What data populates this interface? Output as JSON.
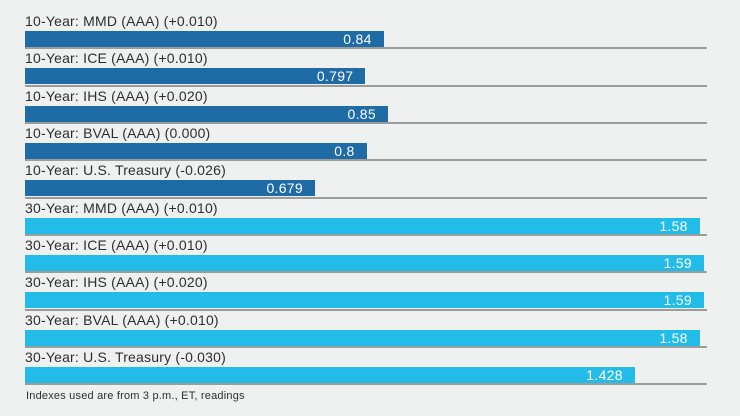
{
  "chart_data": {
    "type": "bar",
    "orientation": "horizontal",
    "title": "",
    "xlabel": "",
    "ylabel": "",
    "xlim": [
      0,
      1.597
    ],
    "grid": false,
    "legend_position": "none",
    "bar_colors": {
      "10-Year": "#1e6ba6",
      "30-Year": "#23bce8"
    },
    "categories": [
      "10-Year: MMD (AAA) (+0.010)",
      "10-Year: ICE (AAA) (+0.010)",
      "10-Year: IHS (AAA) (+0.020)",
      "10-Year: BVAL (AAA) (0.000)",
      "10-Year: U.S. Treasury (-0.026)",
      "30-Year: MMD (AAA) (+0.010)",
      "30-Year: ICE (AAA) (+0.010)",
      "30-Year: IHS (AAA) (+0.020)",
      "30-Year: BVAL (AAA) (+0.010)",
      "30-Year: U.S. Treasury (-0.030)"
    ],
    "values": [
      0.84,
      0.797,
      0.85,
      0.8,
      0.679,
      1.58,
      1.59,
      1.59,
      1.58,
      1.428
    ],
    "rows": [
      {
        "group": "10-Year",
        "label": "10-Year: MMD (AAA) (+0.010)",
        "value": 0.84,
        "display": "0.84"
      },
      {
        "group": "10-Year",
        "label": "10-Year: ICE (AAA) (+0.010)",
        "value": 0.797,
        "display": "0.797"
      },
      {
        "group": "10-Year",
        "label": "10-Year: IHS (AAA) (+0.020)",
        "value": 0.85,
        "display": "0.85"
      },
      {
        "group": "10-Year",
        "label": "10-Year: BVAL (AAA) (0.000)",
        "value": 0.8,
        "display": "0.8"
      },
      {
        "group": "10-Year",
        "label": "10-Year: U.S. Treasury (-0.026)",
        "value": 0.679,
        "display": "0.679"
      },
      {
        "group": "30-Year",
        "label": "30-Year: MMD (AAA) (+0.010)",
        "value": 1.58,
        "display": "1.58"
      },
      {
        "group": "30-Year",
        "label": "30-Year: ICE (AAA) (+0.010)",
        "value": 1.59,
        "display": "1.59"
      },
      {
        "group": "30-Year",
        "label": "30-Year: IHS (AAA) (+0.020)",
        "value": 1.59,
        "display": "1.59"
      },
      {
        "group": "30-Year",
        "label": "30-Year: BVAL (AAA) (+0.010)",
        "value": 1.58,
        "display": "1.58"
      },
      {
        "group": "30-Year",
        "label": "30-Year: U.S. Treasury (-0.030)",
        "value": 1.428,
        "display": "1.428"
      }
    ],
    "footnote": "Indexes used are from 3 p.m., ET, readings"
  },
  "colors": {
    "background": "#eff1f0",
    "separator": "#9a9d9c",
    "label_text": "#2e2e2e",
    "value_text": "#ffffff"
  }
}
